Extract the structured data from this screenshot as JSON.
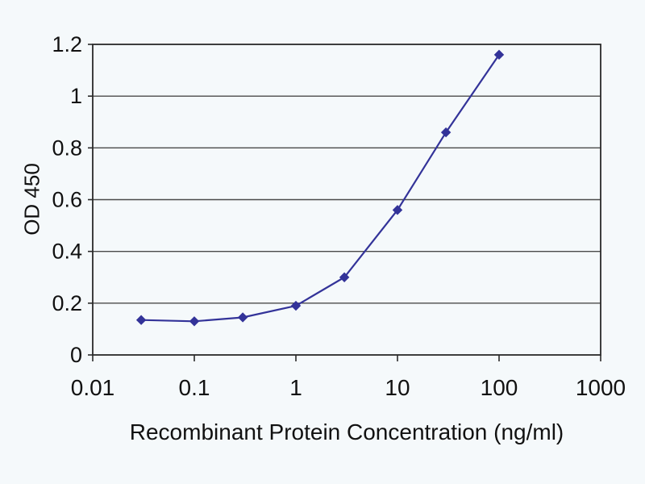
{
  "page": {
    "background_color": "#f5f9fb"
  },
  "chart_data": {
    "type": "line",
    "xlabel": "Recombinant Protein Concentration (ng/ml)",
    "ylabel": "OD 450",
    "x_scale": "log",
    "xlim": [
      0.01,
      1000
    ],
    "ylim": [
      0,
      1.2
    ],
    "x_ticks": [
      "0.01",
      "0.1",
      "1",
      "10",
      "100",
      "1000"
    ],
    "y_ticks": [
      "0",
      "0.2",
      "0.4",
      "0.6",
      "0.8",
      "1",
      "1.2"
    ],
    "grid": "horizontal",
    "x": [
      0.03,
      0.1,
      0.3,
      1,
      3,
      10,
      30,
      100
    ],
    "series": [
      {
        "name": "OD 450",
        "values": [
          0.135,
          0.13,
          0.145,
          0.19,
          0.3,
          0.56,
          0.86,
          1.16
        ]
      }
    ],
    "marker": "diamond",
    "line_color": "#333399",
    "axis_color": "#2a2a2a",
    "grid_color": "#4a4a4a",
    "text_color": "#111111"
  }
}
